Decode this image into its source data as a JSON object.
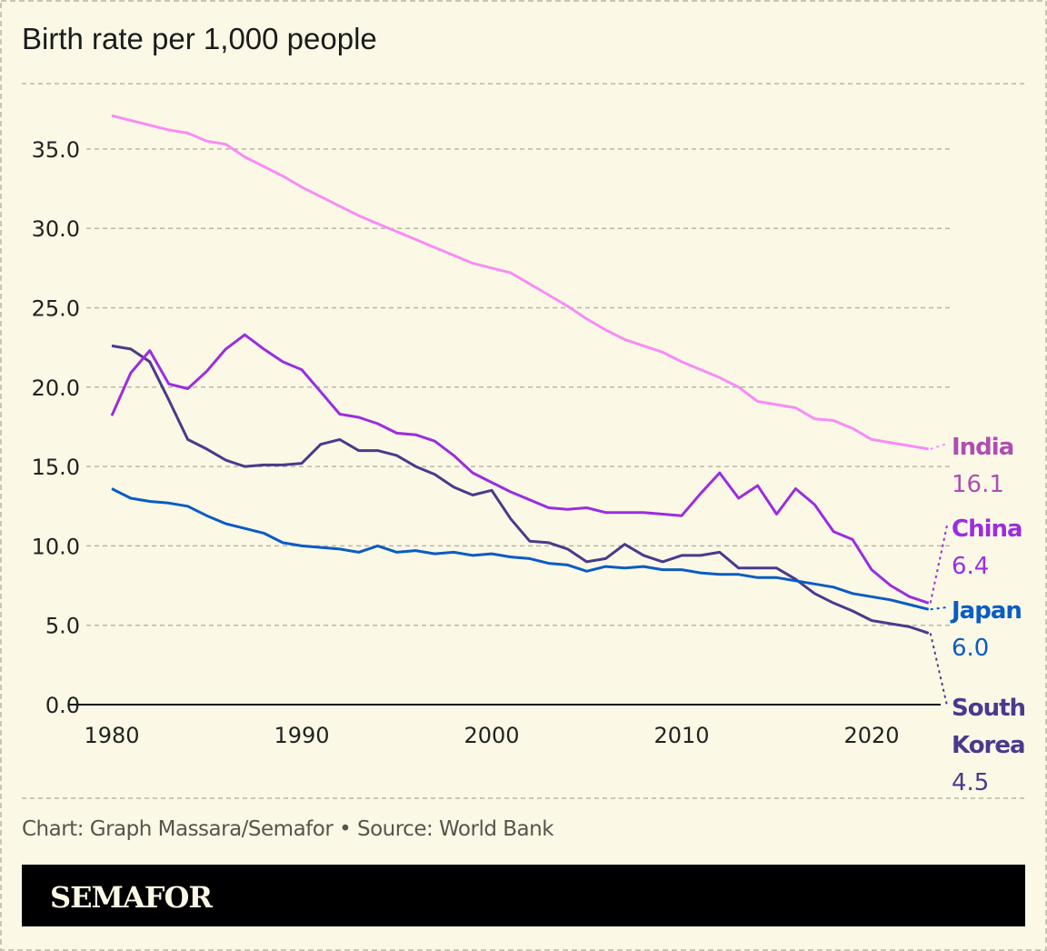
{
  "chart_data": {
    "type": "line",
    "title": "Birth rate per 1,000 people",
    "xlabel": "",
    "ylabel": "",
    "ylim": [
      0,
      35
    ],
    "xlim": [
      1980,
      2023
    ],
    "grid": true,
    "y_ticks": [
      "0.0",
      "5.0",
      "10.0",
      "15.0",
      "20.0",
      "25.0",
      "30.0",
      "35.0"
    ],
    "y_tick_values": [
      0,
      5,
      10,
      15,
      20,
      25,
      30,
      35
    ],
    "x_ticks": [
      "1980",
      "1990",
      "2000",
      "2010",
      "2020"
    ],
    "x_tick_values": [
      1980,
      1990,
      2000,
      2010,
      2020
    ],
    "x_start": 1980,
    "series": [
      {
        "name": "India",
        "label_lines": [
          "India"
        ],
        "end_label": "16.1",
        "color": "#f98cf5",
        "label_color": "#b04db2",
        "values": [
          37.1,
          36.8,
          36.5,
          36.2,
          36.0,
          35.5,
          35.3,
          34.5,
          33.9,
          33.3,
          32.6,
          32.0,
          31.4,
          30.8,
          30.3,
          29.8,
          29.3,
          28.8,
          28.3,
          27.8,
          27.5,
          27.2,
          26.5,
          25.8,
          25.1,
          24.3,
          23.6,
          23.0,
          22.6,
          22.2,
          21.6,
          21.1,
          20.6,
          20.0,
          19.1,
          18.9,
          18.7,
          18.0,
          17.9,
          17.4,
          16.7,
          16.5,
          16.3,
          16.1
        ]
      },
      {
        "name": "China",
        "label_lines": [
          "China"
        ],
        "end_label": "6.4",
        "color": "#9b2de0",
        "label_color": "#9b2de0",
        "values": [
          18.2,
          20.9,
          22.3,
          20.2,
          19.9,
          21.0,
          22.4,
          23.3,
          22.4,
          21.6,
          21.1,
          19.7,
          18.3,
          18.1,
          17.7,
          17.1,
          17.0,
          16.6,
          15.7,
          14.6,
          14.0,
          13.4,
          12.9,
          12.4,
          12.3,
          12.4,
          12.1,
          12.1,
          12.1,
          12.0,
          11.9,
          13.3,
          14.6,
          13.0,
          13.8,
          12.0,
          13.6,
          12.6,
          10.9,
          10.4,
          8.5,
          7.5,
          6.8,
          6.4
        ]
      },
      {
        "name": "Japan",
        "label_lines": [
          "Japan"
        ],
        "end_label": "6.0",
        "color": "#0a5cc4",
        "label_color": "#0a5cc4",
        "values": [
          13.6,
          13.0,
          12.8,
          12.7,
          12.5,
          11.9,
          11.4,
          11.1,
          10.8,
          10.2,
          10.0,
          9.9,
          9.8,
          9.6,
          10.0,
          9.6,
          9.7,
          9.5,
          9.6,
          9.4,
          9.5,
          9.3,
          9.2,
          8.9,
          8.8,
          8.4,
          8.7,
          8.6,
          8.7,
          8.5,
          8.5,
          8.3,
          8.2,
          8.2,
          8.0,
          8.0,
          7.8,
          7.6,
          7.4,
          7.0,
          6.8,
          6.6,
          6.3,
          6.0
        ]
      },
      {
        "name": "South Korea",
        "label_lines": [
          "South",
          "Korea"
        ],
        "end_label": "4.5",
        "color": "#4a3a8c",
        "label_color": "#4a3a8c",
        "values": [
          22.6,
          22.4,
          21.6,
          19.2,
          16.7,
          16.1,
          15.4,
          15.0,
          15.1,
          15.1,
          15.2,
          16.4,
          16.7,
          16.0,
          16.0,
          15.7,
          15.0,
          14.5,
          13.7,
          13.2,
          13.5,
          11.7,
          10.3,
          10.2,
          9.8,
          9.0,
          9.2,
          10.1,
          9.4,
          9.0,
          9.4,
          9.4,
          9.6,
          8.6,
          8.6,
          8.6,
          7.9,
          7.0,
          6.4,
          5.9,
          5.3,
          5.1,
          4.9,
          4.5
        ]
      }
    ],
    "legend": "direct-labels-right"
  },
  "footer": {
    "credit": "Chart: Graph Massara/Semafor • Source: World Bank",
    "logo": "SEMAFOR"
  }
}
